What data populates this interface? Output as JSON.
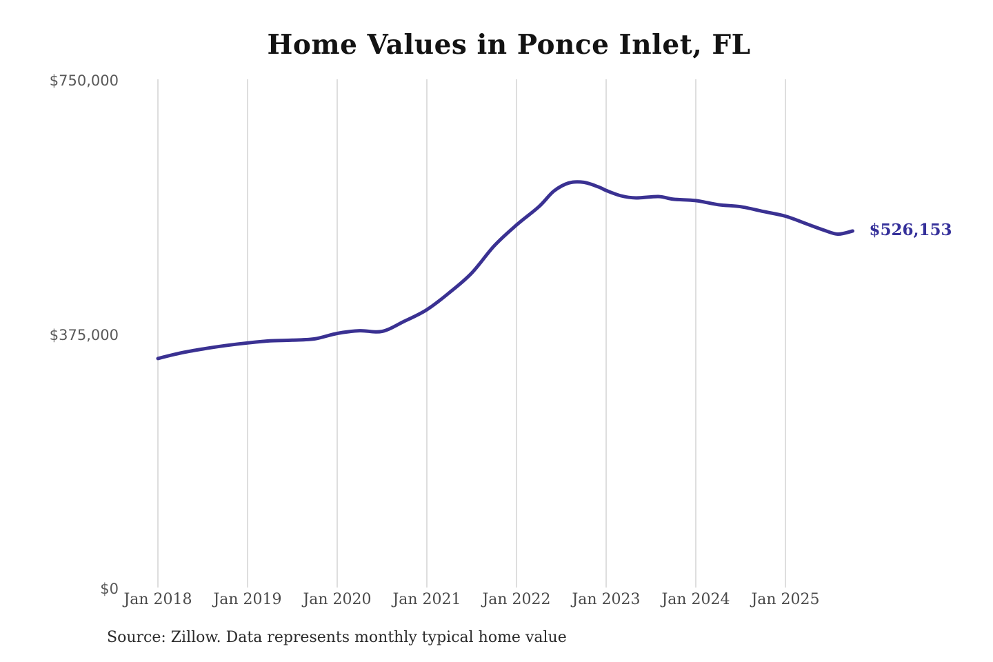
{
  "title": "Home Values in Ponce Inlet, FL",
  "source_note": "Source: Zillow. Data represents monthly typical home value",
  "colors": {
    "line": "#3a3192",
    "end_label": "#35309a",
    "gridline": "#cccccc",
    "y_tick_text": "#595959",
    "x_tick_text": "#4a4a4a",
    "title_text": "#131313"
  },
  "chart_data": {
    "type": "line",
    "title": "Home Values in Ponce Inlet, FL",
    "xlabel": "",
    "ylabel": "",
    "ylim": [
      0,
      750000
    ],
    "grid": "vertical gridlines at each January, no horizontal gridlines",
    "legend_position": "none",
    "x_tick_labels": [
      "Jan 2018",
      "Jan 2019",
      "Jan 2020",
      "Jan 2021",
      "Jan 2022",
      "Jan 2023",
      "Jan 2024",
      "Jan 2025"
    ],
    "y_ticks": [
      {
        "label": "$750,000",
        "value": 750000
      },
      {
        "label": "$375,000",
        "value": 375000
      },
      {
        "label": "$0",
        "value": 0
      }
    ],
    "end_label": "$526,153",
    "end_value": 526153,
    "series": [
      {
        "name": "Monthly typical home value",
        "points": [
          [
            "2018-01",
            338000
          ],
          [
            "2018-04",
            346000
          ],
          [
            "2018-07",
            352000
          ],
          [
            "2018-10",
            357000
          ],
          [
            "2019-01",
            361000
          ],
          [
            "2019-04",
            364000
          ],
          [
            "2019-07",
            365000
          ],
          [
            "2019-10",
            367000
          ],
          [
            "2020-01",
            375000
          ],
          [
            "2020-04",
            379000
          ],
          [
            "2020-07",
            378000
          ],
          [
            "2020-10",
            393000
          ],
          [
            "2021-01",
            410000
          ],
          [
            "2021-04",
            435000
          ],
          [
            "2021-07",
            464000
          ],
          [
            "2021-10",
            504000
          ],
          [
            "2022-01",
            535000
          ],
          [
            "2022-04",
            562000
          ],
          [
            "2022-06",
            585000
          ],
          [
            "2022-08",
            597000
          ],
          [
            "2022-10",
            598000
          ],
          [
            "2022-12",
            591000
          ],
          [
            "2023-01",
            586000
          ],
          [
            "2023-03",
            578000
          ],
          [
            "2023-05",
            575000
          ],
          [
            "2023-08",
            577000
          ],
          [
            "2023-10",
            573000
          ],
          [
            "2024-01",
            571000
          ],
          [
            "2024-04",
            565000
          ],
          [
            "2024-07",
            562000
          ],
          [
            "2024-10",
            555000
          ],
          [
            "2025-01",
            548000
          ],
          [
            "2025-04",
            536000
          ],
          [
            "2025-06",
            528000
          ],
          [
            "2025-08",
            521500
          ],
          [
            "2025-10",
            526153
          ]
        ]
      }
    ],
    "source_note": "Source: Zillow. Data represents monthly typical home value"
  }
}
